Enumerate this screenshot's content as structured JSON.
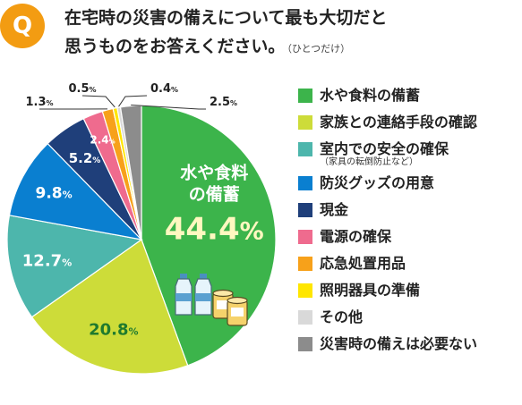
{
  "header": {
    "badge": "Q",
    "question_line1": "在宅時の災害の備えについて最も大切だと",
    "question_line2": "思うものをお答えください。",
    "question_note": "（ひとつだけ）"
  },
  "chart_data": {
    "type": "pie",
    "title": "",
    "unit": "%",
    "categories": [
      {
        "label": "水や食料の備蓄",
        "note": "",
        "value": 44.4,
        "color": "#3cb44b"
      },
      {
        "label": "家族との連絡手段の確認",
        "note": "",
        "value": 20.8,
        "color": "#cddc39"
      },
      {
        "label": "室内での安全の確保",
        "note": "（家具の転倒防止など）",
        "value": 12.7,
        "color": "#4db6ac"
      },
      {
        "label": "防災グッズの用意",
        "note": "",
        "value": 9.8,
        "color": "#0a7fd0"
      },
      {
        "label": "現金",
        "note": "",
        "value": 5.2,
        "color": "#1f3f7a"
      },
      {
        "label": "電源の確保",
        "note": "",
        "value": 2.4,
        "color": "#ef6b8e"
      },
      {
        "label": "応急処置用品",
        "note": "",
        "value": 1.3,
        "color": "#f7a11a"
      },
      {
        "label": "照明器具の準備",
        "note": "",
        "value": 0.5,
        "color": "#ffe600"
      },
      {
        "label": "その他",
        "note": "",
        "value": 0.4,
        "color": "#d9d9d9"
      },
      {
        "label": "災害時の備えは必要ない",
        "note": "",
        "value": 2.5,
        "color": "#8c8c8c"
      }
    ],
    "highlight_label": "水や食料の備蓄",
    "legend_position": "right"
  }
}
